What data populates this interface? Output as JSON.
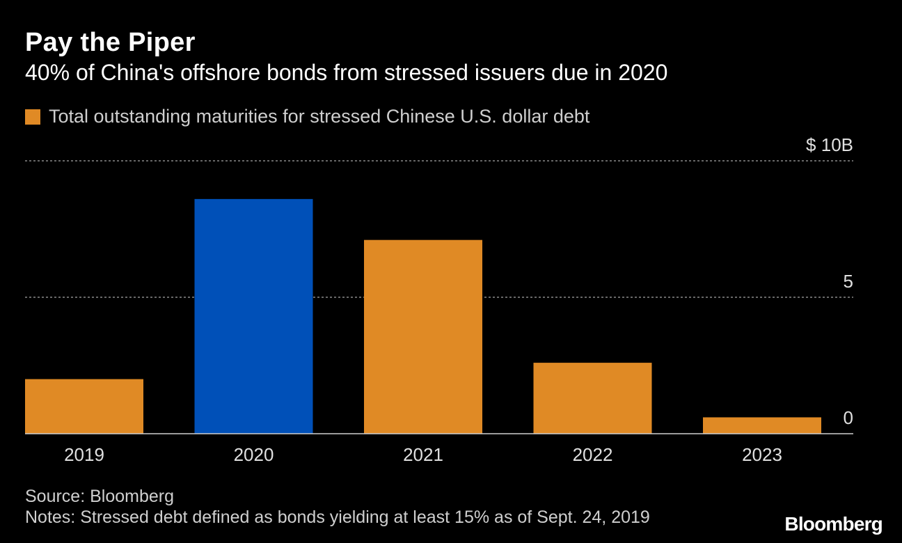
{
  "colors": {
    "background": "#000000",
    "bar_default": "#e08a25",
    "bar_highlight": "#0050b8",
    "grid": "#8a8a8a",
    "axis_text": "#e0e0e0"
  },
  "chart_data": {
    "type": "bar",
    "title": "Pay the Piper",
    "subtitle": "40% of China's offshore bonds from stressed issuers due in 2020",
    "legend": [
      "Total outstanding maturities for stressed Chinese U.S. dollar debt"
    ],
    "legend_position": "top-left",
    "categories": [
      "2019",
      "2020",
      "2021",
      "2022",
      "2023"
    ],
    "series": [
      {
        "name": "Total outstanding maturities for stressed Chinese U.S. dollar debt",
        "values": [
          2.0,
          8.6,
          7.1,
          2.6,
          0.6
        ],
        "highlight_category": "2020"
      }
    ],
    "unit": "$B",
    "ylim": [
      0,
      10
    ],
    "yticks": [
      0,
      5,
      10
    ],
    "ytick_labels": [
      "0",
      "5",
      "$ 10B"
    ],
    "grid": true,
    "xlabel": "",
    "ylabel": ""
  },
  "footer": {
    "source": "Source: Bloomberg",
    "notes": "Notes: Stressed debt defined as bonds yielding at least 15% as of Sept. 24, 2019",
    "brand": "Bloomberg"
  }
}
